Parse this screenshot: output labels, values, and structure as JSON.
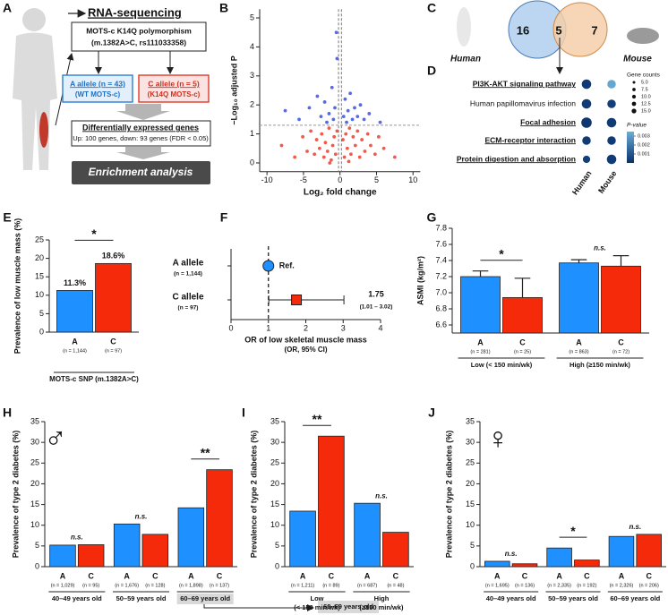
{
  "panel_A": {
    "label": "A",
    "title": "RNA-sequencing",
    "polymorphism": [
      "MOTS-c K14Q polymorphism",
      "(m.1382A>C, rs111033358)"
    ],
    "a_allele": [
      "A allele (n = 43)",
      "(WT MOTS-c)"
    ],
    "c_allele": [
      "C allele (n = 5)",
      "(K14Q MOTS-c)"
    ],
    "deg": [
      "Differentially expressed genes",
      "Up: 100 genes, down: 93 genes (FDR < 0.05)"
    ],
    "enrichment": "Enrichment analysis"
  },
  "panel_C": {
    "label": "C",
    "human_only": 16,
    "shared": 5,
    "mouse_only": 7,
    "left": "Human",
    "right": "Mouse"
  },
  "chart_data": [
    {
      "type": "scatter",
      "label": "B",
      "xlabel": "Log₂ fold change",
      "ylabel": "−Log₁₀ adjusted P",
      "xlim": [
        -11,
        11
      ],
      "ylim": [
        -0.3,
        5.3
      ],
      "xticks": [
        -10,
        -5,
        0,
        5,
        10
      ],
      "yticks": [
        0,
        1,
        2,
        3,
        4,
        5
      ],
      "hlines": [
        1.3
      ],
      "vlines": [
        -0.2,
        0.2
      ],
      "series": [
        {
          "color": "#f03c2a",
          "x": [
            -8.0,
            -6.2,
            -5.1,
            -4.5,
            -4.0,
            -3.5,
            -3.2,
            -2.8,
            -2.5,
            -2.2,
            -2.0,
            -1.7,
            -1.5,
            -1.2,
            -1.0,
            -0.8,
            -0.6,
            -0.4,
            0.4,
            0.6,
            0.8,
            1.0,
            1.3,
            1.5,
            1.8,
            2.1,
            2.4,
            2.7,
            3.0,
            3.4,
            3.8,
            4.2,
            4.8,
            5.3,
            6.0,
            7.5,
            -1.4,
            1.2
          ],
          "y": [
            0.6,
            0.2,
            0.9,
            0.4,
            1.1,
            0.3,
            0.8,
            0.5,
            1.0,
            0.2,
            0.7,
            0.4,
            1.2,
            0.1,
            0.6,
            0.9,
            0.3,
            1.1,
            0.8,
            0.2,
            1.0,
            0.5,
            1.2,
            0.3,
            0.9,
            0.6,
            1.1,
            0.2,
            0.8,
            0.4,
            1.0,
            0.6,
            0.3,
            0.9,
            0.5,
            0.2,
            0.0,
            0.05
          ]
        },
        {
          "color": "#3a4fe0",
          "x": [
            -7.5,
            -5.6,
            -4.2,
            -3.1,
            -2.6,
            -2.1,
            -1.8,
            -1.5,
            -1.1,
            -0.9,
            -0.7,
            -0.5,
            -0.4,
            0.5,
            0.7,
            0.9,
            1.1,
            1.4,
            1.7,
            2.0,
            2.4,
            2.8,
            3.3,
            4.0,
            5.5
          ],
          "y": [
            1.8,
            1.5,
            1.9,
            2.3,
            1.6,
            2.1,
            1.4,
            1.7,
            2.6,
            1.5,
            1.9,
            4.5,
            3.6,
            1.6,
            2.2,
            1.4,
            1.8,
            2.4,
            1.5,
            1.9,
            1.6,
            2.0,
            1.5,
            1.7,
            1.4
          ]
        }
      ]
    },
    {
      "type": "dotplot",
      "label": "D",
      "terms": [
        "PI3K-AKT signaling pathway",
        "Human papillomavirus infection",
        "Focal adhesion",
        "ECM-receptor interaction",
        "Protein digestion and absorption"
      ],
      "emphasized": [
        true,
        false,
        true,
        true,
        true
      ],
      "series": [
        {
          "name": "Human",
          "sizes": [
            12.5,
            12.5,
            15,
            10,
            7.5
          ],
          "pvalues": [
            0.0003,
            0.0003,
            0.0002,
            0.0003,
            0.0004
          ]
        },
        {
          "name": "Mouse",
          "sizes": [
            10,
            10,
            12.5,
            10,
            12.5
          ],
          "pvalues": [
            0.0033,
            0.0004,
            0.0003,
            0.0003,
            0.0003
          ]
        }
      ],
      "size_title": "Gene counts",
      "size_ticks": [
        {
          "value": 5,
          "label": "5.0"
        },
        7.5,
        {
          "value": 10,
          "label": "10.0"
        },
        12.5,
        {
          "value": 15,
          "label": "15.0"
        }
      ],
      "color_title": "P-value",
      "clim": [
        0,
        0.0035
      ],
      "cticks": [
        0.001,
        0.002,
        0.003
      ],
      "colors": [
        "#08306b",
        "#6baed6"
      ]
    },
    {
      "type": "grouped_bar",
      "label": "E",
      "ylabel": "Prevalence of low muscle mass (%)",
      "xlabel": "MOTS-c SNP (m.1382A>C)",
      "ylim": [
        0,
        25
      ],
      "yticks": [
        0,
        5,
        10,
        15,
        20,
        25
      ],
      "significance": [
        "*"
      ],
      "series": [
        {
          "name": "A",
          "color": "#1e90ff",
          "n_labels": [
            "(n = 1,144)"
          ],
          "values": [
            11.3
          ],
          "value_labels": [
            "11.3%"
          ]
        },
        {
          "name": "C",
          "color": "#f42a0a",
          "n_labels": [
            "(n = 97)"
          ],
          "values": [
            18.6
          ],
          "value_labels": [
            "18.6%"
          ]
        }
      ]
    },
    {
      "type": "forest",
      "label": "F",
      "xlabel": "OR of low skeletal muscle mass",
      "xlabel2": "(OR, 95% CI)",
      "xlim": [
        0,
        4
      ],
      "xticks": [
        0,
        1,
        2,
        3,
        4
      ],
      "reference": 1,
      "rows": [
        "A allele",
        "C allele"
      ],
      "n_labels": [
        "(n = 1,144)",
        "(n = 97)"
      ],
      "colors": [
        "#1e90ff",
        "#f42a0a"
      ],
      "markers": [
        "circle",
        "square"
      ],
      "values": [
        1,
        1.75
      ],
      "value_labels": [
        "Ref.",
        "1.75"
      ],
      "ci_low": [
        null,
        1.01
      ],
      "ci_high": [
        null,
        3.02
      ],
      "ci_labels": [
        null,
        "(1.01 – 3.02)"
      ]
    },
    {
      "type": "grouped_bar",
      "label": "G",
      "ylabel": "ASMI (kg/m²)",
      "ylim": [
        6.5,
        7.8
      ],
      "yticks": [
        6.6,
        6.8,
        {
          "value": 7,
          "label": "7.0"
        },
        7.2,
        7.4,
        7.6,
        7.8
      ],
      "groups": [
        "Low (< 150 min/wk)",
        "High (≥150 min/wk)"
      ],
      "significance": [
        "*",
        "n.s."
      ],
      "series": [
        {
          "name": "A",
          "color": "#1e90ff",
          "n_labels": [
            "(n = 281)",
            "(n = 863)"
          ],
          "values": [
            7.2,
            7.37
          ],
          "errors": [
            0.07,
            0.04
          ]
        },
        {
          "name": "C",
          "color": "#f42a0a",
          "n_labels": [
            "(n = 25)",
            "(n = 72)"
          ],
          "values": [
            6.94,
            7.33
          ],
          "errors": [
            0.24,
            0.13
          ]
        }
      ]
    },
    {
      "type": "grouped_bar",
      "label": "H",
      "symbol": "♂",
      "ylabel": "Prevalence of type 2 diabetes (%)",
      "ylim": [
        0,
        35
      ],
      "yticks": [
        0,
        5,
        10,
        15,
        20,
        25,
        30,
        35
      ],
      "groups": [
        "40–49 years old",
        "50–59 years old",
        "60–69 years old"
      ],
      "highlight": [
        false,
        false,
        true
      ],
      "significance": [
        "n.s.",
        "n.s.",
        "**"
      ],
      "series": [
        {
          "name": "A",
          "color": "#1e90ff",
          "n_labels": [
            "(n = 1,029)",
            "(n = 1,676)",
            "(n = 1,898)"
          ],
          "values": [
            5.2,
            10.3,
            14.2
          ]
        },
        {
          "name": "C",
          "color": "#f42a0a",
          "n_labels": [
            "(n = 95)",
            "(n = 128)",
            "(n = 137)"
          ],
          "values": [
            5.3,
            7.8,
            23.4
          ]
        }
      ]
    },
    {
      "type": "grouped_bar",
      "label": "I",
      "ylabel": "Prevalence of type 2 diabetes (%)",
      "ylim": [
        0,
        35
      ],
      "yticks": [
        0,
        5,
        10,
        15,
        20,
        25,
        30,
        35
      ],
      "groups": [
        [
          "Low",
          "(< 150 min/wk)"
        ],
        [
          "High",
          "(≥150 min/wk)"
        ]
      ],
      "significance": [
        "**",
        "n.s."
      ],
      "subset": "60–69 years old",
      "series": [
        {
          "name": "A",
          "color": "#1e90ff",
          "n_labels": [
            "(n = 1,211)",
            "(n = 687)"
          ],
          "values": [
            13.4,
            15.3
          ]
        },
        {
          "name": "C",
          "color": "#f42a0a",
          "n_labels": [
            "(n = 89)",
            "(n = 48)"
          ],
          "values": [
            31.5,
            8.3
          ]
        }
      ]
    },
    {
      "type": "grouped_bar",
      "label": "J",
      "symbol": "♀",
      "ylabel": "Prevalence of type 2 diabetes (%)",
      "ylim": [
        0,
        35
      ],
      "yticks": [
        0,
        5,
        10,
        15,
        20,
        25,
        30,
        35
      ],
      "groups": [
        "40–49 years old",
        "50–59 years old",
        "60–69 years old"
      ],
      "significance": [
        "n.s.",
        "*",
        "n.s."
      ],
      "series": [
        {
          "name": "A",
          "color": "#1e90ff",
          "n_labels": [
            "(n = 1,695)",
            "(n = 2,335)",
            "(n = 2,326)"
          ],
          "values": [
            1.3,
            4.5,
            7.3
          ]
        },
        {
          "name": "C",
          "color": "#f42a0a",
          "n_labels": [
            "(n = 136)",
            "(n = 192)",
            "(n = 206)"
          ],
          "values": [
            0.7,
            1.6,
            7.8
          ]
        }
      ]
    }
  ]
}
